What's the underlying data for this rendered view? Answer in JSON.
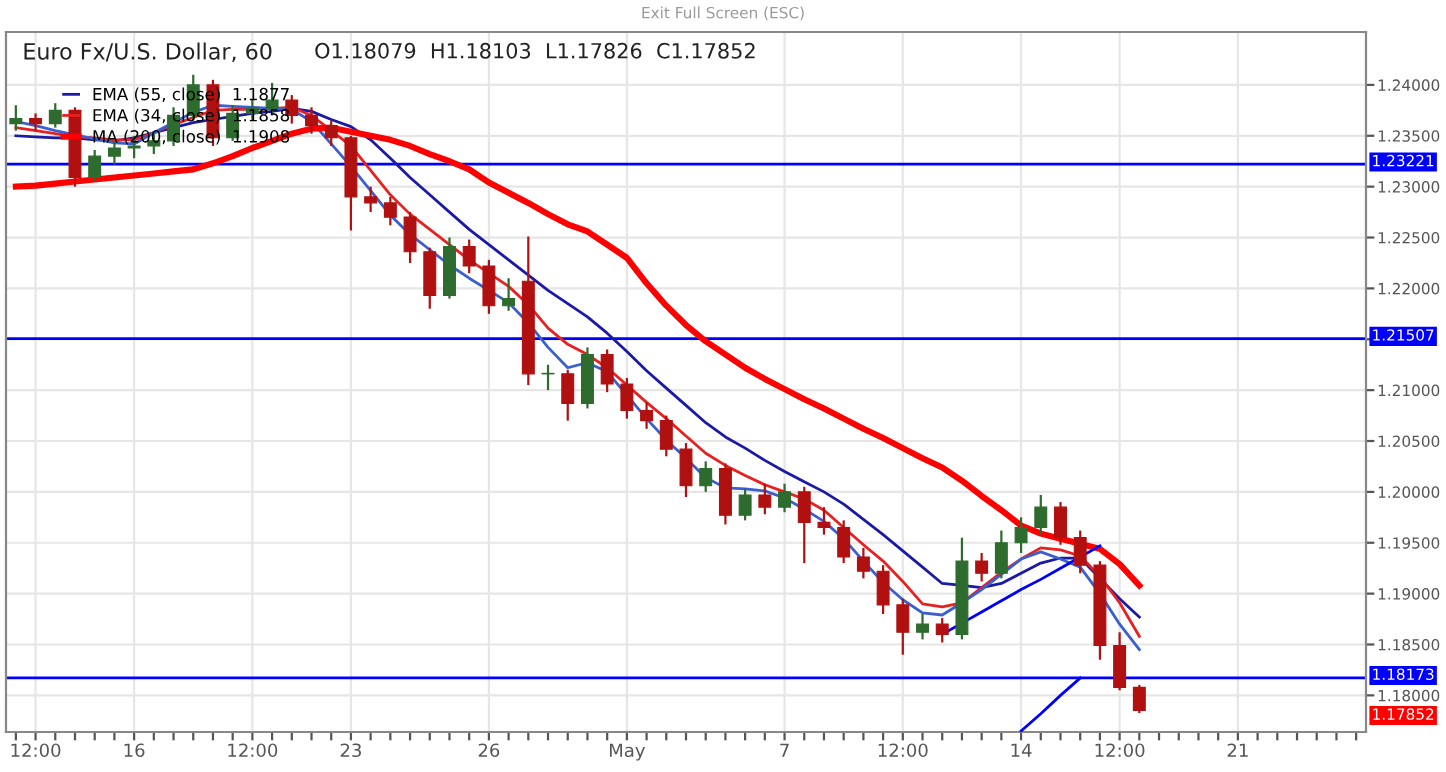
{
  "chart_data": {
    "type": "candlestick",
    "title": "Euro Fx/U.S. Dollar, 60",
    "subtitle": "O1.18079  H1.18103  L1.17826  C1.17852",
    "categories": [
      null,
      "12:00",
      null,
      null,
      null,
      null,
      "16",
      null,
      null,
      null,
      null,
      null,
      "12:00",
      null,
      null,
      null,
      null,
      "23",
      null,
      null,
      null,
      null,
      null,
      null,
      "26",
      null,
      null,
      null,
      null,
      null,
      null,
      "May",
      null,
      null,
      null,
      null,
      null,
      null,
      null,
      "7",
      null,
      null,
      null,
      null,
      null,
      "12:00",
      null,
      null,
      null,
      null,
      null,
      "14",
      null,
      null,
      null,
      null,
      "12:00",
      null,
      null,
      null,
      null,
      null,
      "21",
      null,
      null,
      null,
      null,
      null,
      null
    ],
    "ohlc": [
      [
        1.2362,
        1.238,
        1.2355,
        1.2367
      ],
      [
        1.2367,
        1.2372,
        1.2355,
        1.2362
      ],
      [
        1.2362,
        1.2382,
        1.2358,
        1.2375
      ],
      [
        1.2375,
        1.2378,
        1.23,
        1.2309
      ],
      [
        1.2309,
        1.2336,
        1.2305,
        1.233
      ],
      [
        1.233,
        1.2345,
        1.2322,
        1.2338
      ],
      [
        1.2338,
        1.235,
        1.2328,
        1.234
      ],
      [
        1.234,
        1.2352,
        1.2332,
        1.2345
      ],
      [
        1.2345,
        1.2378,
        1.234,
        1.237
      ],
      [
        1.237,
        1.241,
        1.2365,
        1.24
      ],
      [
        1.24,
        1.2405,
        1.234,
        1.2348
      ],
      [
        1.2348,
        1.238,
        1.2345,
        1.2372
      ],
      [
        1.2372,
        1.2386,
        1.2365,
        1.2377
      ],
      [
        1.2377,
        1.2402,
        1.237,
        1.2385
      ],
      [
        1.2385,
        1.239,
        1.2362,
        1.237
      ],
      [
        1.237,
        1.2378,
        1.2352,
        1.236
      ],
      [
        1.236,
        1.2365,
        1.234,
        1.2348
      ],
      [
        1.2348,
        1.235,
        1.2257,
        1.229
      ],
      [
        1.229,
        1.23,
        1.2275,
        1.2284
      ],
      [
        1.2284,
        1.229,
        1.2262,
        1.227
      ],
      [
        1.227,
        1.2275,
        1.2225,
        1.2236
      ],
      [
        1.2236,
        1.224,
        1.218,
        1.2193
      ],
      [
        1.2193,
        1.225,
        1.219,
        1.2241
      ],
      [
        1.2241,
        1.2248,
        1.2215,
        1.2222
      ],
      [
        1.2222,
        1.2228,
        1.2175,
        1.2183
      ],
      [
        1.2183,
        1.221,
        1.2178,
        1.219
      ],
      [
        1.2207,
        1.2251,
        1.2105,
        1.2116
      ],
      [
        1.2116,
        1.2125,
        1.21,
        1.2116
      ],
      [
        1.2116,
        1.212,
        1.207,
        1.2087
      ],
      [
        1.2087,
        1.2142,
        1.2082,
        1.2135
      ],
      [
        1.2135,
        1.214,
        1.2098,
        1.2106
      ],
      [
        1.2106,
        1.2112,
        1.2072,
        1.208
      ],
      [
        1.208,
        1.2088,
        1.2062,
        1.207
      ],
      [
        1.207,
        1.2075,
        1.2035,
        1.2042
      ],
      [
        1.2042,
        1.2048,
        1.1995,
        1.2006
      ],
      [
        1.2006,
        1.203,
        1.2,
        1.2023
      ],
      [
        1.2023,
        1.2028,
        1.1968,
        1.1977
      ],
      [
        1.1977,
        1.2003,
        1.1972,
        1.1997
      ],
      [
        1.1997,
        1.2008,
        1.1978,
        1.1985
      ],
      [
        1.1985,
        1.2008,
        1.198,
        1.2
      ],
      [
        1.2,
        1.2005,
        1.193,
        1.197
      ],
      [
        1.197,
        1.1985,
        1.1958,
        1.1965
      ],
      [
        1.1965,
        1.1972,
        1.193,
        1.1936
      ],
      [
        1.1936,
        1.1945,
        1.1915,
        1.1922
      ],
      [
        1.1922,
        1.1928,
        1.188,
        1.1889
      ],
      [
        1.1889,
        1.1895,
        1.184,
        1.1862
      ],
      [
        1.1862,
        1.188,
        1.1855,
        1.187
      ],
      [
        1.187,
        1.1876,
        1.1852,
        1.186
      ],
      [
        1.186,
        1.1955,
        1.1855,
        1.1932
      ],
      [
        1.1932,
        1.194,
        1.1912,
        1.192
      ],
      [
        1.192,
        1.1962,
        1.1915,
        1.195
      ],
      [
        1.195,
        1.1975,
        1.194,
        1.1965
      ],
      [
        1.1965,
        1.1997,
        1.1958,
        1.1985
      ],
      [
        1.1985,
        1.199,
        1.1948,
        1.1955
      ],
      [
        1.1955,
        1.1962,
        1.192,
        1.1928
      ],
      [
        1.1928,
        1.1932,
        1.1835,
        1.1849
      ],
      [
        1.1849,
        1.1862,
        1.1805,
        1.18079
      ],
      [
        1.18079,
        1.18103,
        1.17826,
        1.17852
      ],
      null,
      null,
      null,
      null,
      null,
      null,
      null,
      null,
      null,
      null,
      null
    ],
    "series": [
      {
        "type": "line",
        "name": "EMA (55, close)  1.1877",
        "color": "#1a1aa6",
        "values": [
          1.235,
          1.2349,
          1.2348,
          1.2348,
          1.2346,
          1.2345,
          1.2348,
          1.2353,
          1.2358,
          1.2363,
          1.2366,
          1.2369,
          1.2372,
          1.2374,
          1.2377,
          1.2374,
          1.2366,
          1.2359,
          1.2346,
          1.2328,
          1.2309,
          1.2292,
          1.2275,
          1.2258,
          1.2243,
          1.2228,
          1.2213,
          1.2198,
          1.2185,
          1.2172,
          1.2156,
          1.2138,
          1.2119,
          1.2102,
          1.2085,
          1.2068,
          1.2054,
          1.2043,
          1.2031,
          1.202,
          1.201,
          1.2,
          1.1988,
          1.1973,
          1.1958,
          1.1942,
          1.1926,
          1.191,
          1.1908,
          1.1906,
          1.191,
          1.192,
          1.193,
          1.1935,
          1.1935,
          1.1915,
          1.1895,
          1.1877,
          null,
          null,
          null,
          null,
          null,
          null,
          null,
          null,
          null,
          null,
          null
        ]
      },
      {
        "type": "line",
        "name": "EMA (34, close)  1.1858",
        "color": "#e82020",
        "values": [
          1.2358,
          1.2355,
          1.2352,
          1.2349,
          1.2348,
          1.2346,
          1.2346,
          1.2353,
          1.2361,
          1.2368,
          1.2375,
          1.2376,
          1.2376,
          1.2377,
          1.2378,
          1.237,
          1.2355,
          1.234,
          1.2316,
          1.2292,
          1.2273,
          1.2258,
          1.2243,
          1.2228,
          1.2215,
          1.2202,
          1.2184,
          1.2161,
          1.2145,
          1.2135,
          1.2122,
          1.2105,
          1.2088,
          1.2072,
          1.2055,
          1.2038,
          1.2026,
          1.2016,
          1.2007,
          1.2,
          1.1993,
          1.1982,
          1.1965,
          1.1948,
          1.1932,
          1.1912,
          1.189,
          1.1887,
          1.1891,
          1.1906,
          1.1921,
          1.1934,
          1.1945,
          1.1943,
          1.1937,
          1.1917,
          1.1891,
          1.1858,
          null,
          null,
          null,
          null,
          null,
          null,
          null,
          null,
          null,
          null,
          null
        ]
      },
      {
        "type": "line",
        "color": "#3a5fd0",
        "values": [
          1.2364,
          1.236,
          1.2355,
          1.2351,
          1.2347,
          1.2343,
          1.2342,
          1.2353,
          1.2363,
          1.2373,
          1.238,
          1.2379,
          1.2378,
          1.2377,
          1.2376,
          1.2364,
          1.2342,
          1.232,
          1.2296,
          1.2272,
          1.2253,
          1.2238,
          1.2223,
          1.221,
          1.2198,
          1.2186,
          1.2166,
          1.2142,
          1.2122,
          1.2127,
          1.2118,
          1.2095,
          1.2072,
          1.2051,
          1.2033,
          1.2014,
          1.2004,
          1.2003,
          1.2001,
          1.1994,
          1.1983,
          1.1971,
          1.1954,
          1.1932,
          1.1911,
          1.1894,
          1.1881,
          1.1879,
          1.1891,
          1.1904,
          1.1919,
          1.1934,
          1.1941,
          1.1934,
          1.1926,
          1.19,
          1.187,
          1.1845,
          null,
          null,
          null,
          null,
          null,
          null,
          null,
          null,
          null,
          null,
          null
        ]
      },
      {
        "type": "line",
        "name": "MA (200, close)  1.1908",
        "color": "#ff0000",
        "values": [
          1.23,
          1.2301,
          1.2303,
          1.2305,
          1.2307,
          1.2309,
          1.2311,
          1.2313,
          1.2315,
          1.2317,
          1.2323,
          1.233,
          1.2338,
          1.2345,
          1.2352,
          1.2357,
          1.2358,
          1.2354,
          1.235,
          1.2346,
          1.234,
          1.2332,
          1.2325,
          1.2317,
          1.2304,
          1.2294,
          1.2284,
          1.2273,
          1.2263,
          1.2256,
          1.2243,
          1.223,
          1.2205,
          1.2183,
          1.2164,
          1.2148,
          1.2135,
          1.2122,
          1.2111,
          1.2101,
          1.2091,
          1.2082,
          1.2072,
          1.2062,
          1.2053,
          1.2043,
          1.2033,
          1.2024,
          1.2011,
          1.1996,
          1.1982,
          1.1967,
          1.1959,
          1.1954,
          1.1949,
          1.1944,
          1.1929,
          1.1908,
          null,
          null,
          null,
          null,
          null,
          null,
          null,
          null,
          null,
          null,
          null
        ]
      },
      {
        "type": "line",
        "color": "#0000ff",
        "values": [
          null,
          null,
          null,
          null,
          null,
          null,
          null,
          null,
          null,
          null,
          null,
          null,
          null,
          null,
          null,
          null,
          null,
          null,
          null,
          null,
          null,
          null,
          null,
          null,
          null,
          null,
          null,
          null,
          null,
          null,
          null,
          null,
          null,
          null,
          null,
          null,
          null,
          null,
          null,
          null,
          null,
          null,
          null,
          null,
          null,
          null,
          null,
          1.186,
          1.1871,
          1.1882,
          1.1893,
          1.1904,
          1.1914,
          1.1925,
          1.1936,
          1.1947,
          null,
          null,
          null,
          null,
          null,
          null,
          null,
          null,
          null,
          null,
          null,
          null,
          null
        ]
      },
      {
        "type": "line",
        "color": "#0000ff",
        "values": [
          null,
          null,
          null,
          null,
          null,
          null,
          null,
          null,
          null,
          null,
          null,
          null,
          null,
          null,
          null,
          null,
          null,
          null,
          null,
          null,
          null,
          null,
          null,
          null,
          null,
          null,
          null,
          null,
          null,
          null,
          null,
          null,
          null,
          null,
          null,
          null,
          null,
          null,
          null,
          null,
          null,
          null,
          null,
          null,
          null,
          null,
          null,
          null,
          null,
          null,
          null,
          1.1765,
          1.1782,
          1.18,
          1.1817,
          null,
          null,
          null,
          null,
          null,
          null,
          null,
          null,
          null,
          null,
          null,
          null,
          null,
          null
        ]
      }
    ],
    "ref_lines": [
      {
        "axis": "y",
        "value": 1.23221,
        "label": "1.23221",
        "color": "#0000ff"
      },
      {
        "axis": "y",
        "value": 1.21507,
        "label": "1.21507",
        "color": "#0000ff"
      },
      {
        "axis": "y",
        "value": 1.18173,
        "label": "1.18173",
        "color": "#0000ff"
      }
    ],
    "annotations": [
      "1.17852",
      "Exit Full Screen (ESC)"
    ],
    "ylim": [
      1.1764,
      1.2452
    ],
    "yticks": [
      {
        "value": 1.18,
        "label": "1.18000"
      },
      {
        "value": 1.185,
        "label": "1.18500"
      },
      {
        "value": 1.19,
        "label": "1.19000"
      },
      {
        "value": 1.195,
        "label": "1.19500"
      },
      {
        "value": 1.2,
        "label": "1.20000"
      },
      {
        "value": 1.205,
        "label": "1.20500"
      },
      {
        "value": 1.21,
        "label": "1.21000"
      },
      {
        "value": 1.215,
        "label": null
      },
      {
        "value": 1.22,
        "label": "1.22000"
      },
      {
        "value": 1.225,
        "label": "1.22500"
      },
      {
        "value": 1.23,
        "label": "1.23000"
      },
      {
        "value": 1.235,
        "label": "1.23500"
      },
      {
        "value": 1.24,
        "label": "1.24000"
      }
    ],
    "grid": true,
    "legend": "top left"
  }
}
